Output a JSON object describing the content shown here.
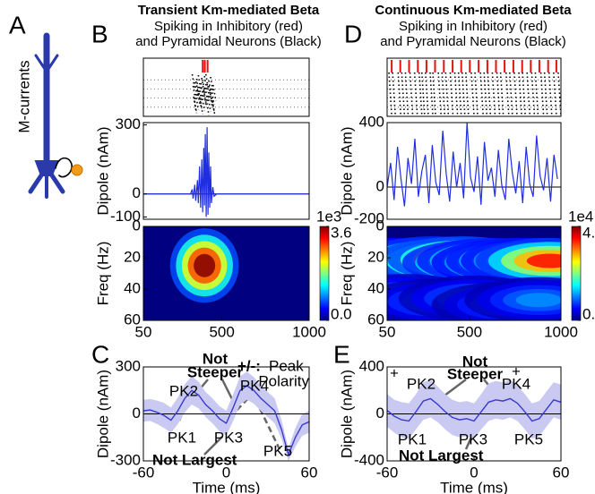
{
  "panel_labels": [
    "A",
    "B",
    "C",
    "D",
    "E"
  ],
  "neuron_label": "M-currents",
  "chart_data": [
    {
      "type": "raster",
      "title": "Transient Km-mediated Beta",
      "subtitle": [
        "Spiking in Inhibitory (red)",
        "and Pyramidal Neurons (Black)"
      ],
      "xlim": [
        50,
        1000
      ],
      "inhibitory_color": "#e8120c",
      "pyramidal_color": "#000000",
      "inhibitory_spikes": [
        390,
        402,
        418
      ],
      "pyramidal_spikes": [
        330,
        335,
        340,
        345,
        350,
        355,
        360,
        365,
        370,
        375,
        380,
        385,
        390,
        395,
        400,
        405,
        410,
        415,
        420,
        425,
        430,
        435,
        440,
        445,
        450,
        338,
        352,
        368,
        384,
        396,
        408,
        426,
        442
      ]
    },
    {
      "type": "line",
      "ylabel": "Dipole (nAm)",
      "xlim": [
        50,
        1000
      ],
      "ylim": [
        -110,
        310
      ],
      "yticks": [
        300,
        0,
        -100
      ],
      "color": "#1f2ee0",
      "x": [
        50,
        200,
        320,
        330,
        335,
        345,
        350,
        360,
        365,
        372,
        378,
        385,
        390,
        396,
        400,
        405,
        410,
        415,
        420,
        425,
        430,
        435,
        440,
        448,
        455,
        470,
        1000
      ],
      "values": [
        0,
        0,
        0,
        20,
        -20,
        40,
        -30,
        60,
        -40,
        120,
        -60,
        150,
        -80,
        200,
        -50,
        260,
        -100,
        290,
        -90,
        180,
        -60,
        120,
        -40,
        30,
        -10,
        0,
        0
      ]
    },
    {
      "type": "heatmap",
      "ylabel": "Freq (Hz)",
      "xlim": [
        50,
        1000
      ],
      "xticks": [
        50,
        500,
        1000
      ],
      "ylim": [
        0,
        60
      ],
      "yticks": [
        0,
        20,
        40,
        60
      ],
      "y_inverted": true,
      "colorbar": {
        "scale_label": "1e3",
        "lim": [
          0,
          3.6
        ],
        "ticks": [
          3.6,
          {
            "value": 0,
            "label": "0.0"
          }
        ]
      },
      "peaks": [
        {
          "x": 400,
          "y": 25,
          "value": 3.6
        }
      ]
    },
    {
      "type": "raster",
      "title": "Continuous Km-mediated Beta",
      "subtitle": [
        "Spiking in Inhibitory (red)",
        "and Pyramidal Neurons (Black)"
      ],
      "xlim": [
        50,
        1000
      ],
      "inhibitory_color": "#e8120c",
      "pyramidal_color": "#000000",
      "inhibitory_spikes": [
        75,
        122,
        170,
        218,
        265,
        312,
        360,
        408,
        455,
        502,
        550,
        598,
        645,
        692,
        740,
        788,
        835,
        882,
        930,
        975
      ],
      "pyramidal_spikes": [
        60,
        80,
        110,
        130,
        150,
        175,
        200,
        225,
        240,
        260,
        285,
        300,
        330,
        350,
        370,
        395,
        420,
        440,
        460,
        480,
        510,
        530,
        560,
        580,
        600,
        625,
        650,
        670,
        700,
        720,
        745,
        770,
        790,
        815,
        840,
        860,
        890,
        910,
        935,
        960,
        985
      ]
    },
    {
      "type": "line",
      "ylabel": "Dipole (nAm)",
      "xlim": [
        50,
        1000
      ],
      "ylim": [
        -200,
        400
      ],
      "yticks": [
        400,
        0,
        -200
      ],
      "color": "#1f2ee0",
      "x": [
        50,
        69,
        88,
        107,
        126,
        145,
        164,
        183,
        202,
        221,
        240,
        259,
        278,
        297,
        316,
        335,
        354,
        373,
        392,
        411,
        430,
        449,
        468,
        487,
        506,
        525,
        544,
        563,
        582,
        601,
        620,
        639,
        658,
        677,
        696,
        715,
        734,
        753,
        772,
        791,
        810,
        829,
        848,
        867,
        886,
        905,
        924,
        943,
        962,
        981
      ],
      "values": [
        0,
        150,
        -80,
        250,
        50,
        -120,
        180,
        20,
        300,
        -60,
        100,
        200,
        -100,
        260,
        30,
        -50,
        350,
        80,
        -90,
        220,
        0,
        150,
        -70,
        400,
        60,
        -30,
        190,
        -110,
        280,
        40,
        120,
        -60,
        230,
        10,
        -80,
        300,
        90,
        -40,
        160,
        -100,
        250,
        20,
        -60,
        320,
        70,
        -20,
        180,
        -90,
        200,
        50
      ]
    },
    {
      "type": "heatmap",
      "ylabel": "Freq (Hz)",
      "xlim": [
        50,
        1000
      ],
      "xticks": [
        50,
        500,
        1000
      ],
      "ylim": [
        0,
        60
      ],
      "yticks": [
        0,
        20,
        40,
        60
      ],
      "y_inverted": true,
      "colorbar": {
        "scale_label": "1e4",
        "lim": [
          0,
          4.5
        ],
        "ticks": [
          4.5,
          {
            "value": 0,
            "label": "0.0"
          }
        ]
      },
      "peaks": [
        {
          "x": 80,
          "y": 22,
          "value": 3.0
        },
        {
          "x": 150,
          "y": 23,
          "value": 3.5
        },
        {
          "x": 220,
          "y": 22,
          "value": 3.2
        },
        {
          "x": 300,
          "y": 21,
          "value": 3.8
        },
        {
          "x": 380,
          "y": 22,
          "value": 4.2
        },
        {
          "x": 460,
          "y": 21,
          "value": 4.5
        },
        {
          "x": 540,
          "y": 23,
          "value": 3.6
        },
        {
          "x": 620,
          "y": 22,
          "value": 3.4
        },
        {
          "x": 700,
          "y": 23,
          "value": 3.0
        },
        {
          "x": 780,
          "y": 22,
          "value": 3.3
        },
        {
          "x": 860,
          "y": 22,
          "value": 3.1
        },
        {
          "x": 940,
          "y": 22,
          "value": 3.9
        },
        {
          "x": 150,
          "y": 45,
          "value": 1.4
        },
        {
          "x": 320,
          "y": 48,
          "value": 1.2
        },
        {
          "x": 520,
          "y": 46,
          "value": 1.3
        },
        {
          "x": 700,
          "y": 50,
          "value": 1.1
        },
        {
          "x": 880,
          "y": 47,
          "value": 1.2
        }
      ]
    },
    {
      "type": "band",
      "ylabel": "Dipole (nAm)",
      "xlabel": "Time (ms)",
      "xlim": [
        -60,
        60
      ],
      "xticks": [
        -60,
        0,
        60
      ],
      "ylim": [
        -300,
        300
      ],
      "yticks": [
        300,
        0,
        -300
      ],
      "series": [
        {
          "color": "#3a3ad0",
          "band_color": "#c9c9f2",
          "x": [
            -60,
            -55,
            -50,
            -45,
            -40,
            -35,
            -30,
            -25,
            -20,
            -15,
            -10,
            -5,
            0,
            5,
            10,
            15,
            20,
            25,
            30,
            35,
            40,
            45,
            50,
            55,
            60
          ],
          "values": [
            20,
            25,
            10,
            -10,
            -40,
            20,
            100,
            150,
            120,
            60,
            20,
            -30,
            -60,
            40,
            150,
            180,
            150,
            100,
            60,
            20,
            -100,
            -260,
            -150,
            -70,
            -50
          ],
          "error": [
            70,
            70,
            75,
            80,
            80,
            85,
            90,
            90,
            85,
            80,
            80,
            80,
            80,
            85,
            90,
            90,
            85,
            80,
            80,
            80,
            60,
            40,
            60,
            70,
            70
          ]
        }
      ],
      "annotations": [
        "+/-:",
        "Peak",
        "Polarity",
        "Not",
        "Steeper",
        "PK1",
        "PK2",
        "PK3",
        "PK4",
        "PK5",
        "Not Largest"
      ]
    },
    {
      "type": "band",
      "ylabel": "Dipole (nAm)",
      "xlabel": "Time (ms)",
      "xlim": [
        -60,
        60
      ],
      "xticks": [
        -60,
        0,
        60
      ],
      "ylim": [
        -400,
        400
      ],
      "yticks": [
        400,
        0,
        -400
      ],
      "series": [
        {
          "color": "#3a3ad0",
          "band_color": "#c9c9f2",
          "x": [
            -60,
            -55,
            -50,
            -45,
            -40,
            -35,
            -30,
            -25,
            -20,
            -15,
            -10,
            -5,
            0,
            5,
            10,
            15,
            20,
            25,
            30,
            35,
            40,
            45,
            50,
            55,
            60
          ],
          "values": [
            30,
            -20,
            -50,
            -60,
            20,
            110,
            130,
            80,
            20,
            -30,
            -50,
            -40,
            -60,
            20,
            100,
            120,
            110,
            130,
            90,
            20,
            -60,
            -40,
            40,
            120,
            100
          ],
          "error": [
            140,
            140,
            150,
            150,
            150,
            160,
            160,
            150,
            150,
            150,
            150,
            150,
            150,
            150,
            160,
            160,
            160,
            160,
            150,
            150,
            150,
            150,
            150,
            150,
            150
          ]
        }
      ],
      "annotations": [
        "+",
        "Not",
        "Steeper",
        "+",
        "PK1",
        "PK2",
        "PK3",
        "PK4",
        "PK5",
        "Not Largest"
      ]
    }
  ]
}
